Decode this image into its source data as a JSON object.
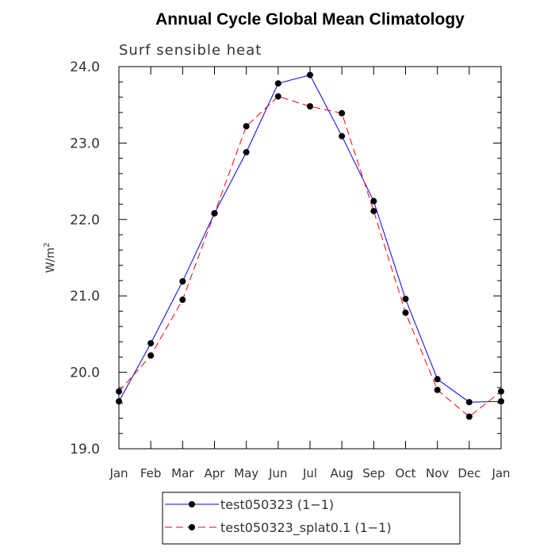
{
  "chart_data": {
    "type": "line",
    "title": "Annual Cycle Global Mean Climatology",
    "subtitle": "Surf sensible heat",
    "ylabel": "W/m",
    "ylabel_superscript": "2",
    "ylim": [
      19.0,
      24.0
    ],
    "yticks": [
      19.0,
      20.0,
      21.0,
      22.0,
      23.0,
      24.0
    ],
    "ytick_labels": [
      "19.0",
      "20.0",
      "21.0",
      "22.0",
      "23.0",
      "24.0"
    ],
    "categories": [
      "Jan",
      "Feb",
      "Mar",
      "Apr",
      "May",
      "Jun",
      "Jul",
      "Aug",
      "Sep",
      "Oct",
      "Nov",
      "Dec",
      "Jan"
    ],
    "grid": false,
    "legend_position": "bottom",
    "series": [
      {
        "name": "test050323 (1−1)",
        "color": "#0000ff",
        "dash": "solid",
        "values": [
          19.62,
          20.38,
          21.19,
          22.08,
          22.88,
          23.78,
          23.89,
          23.09,
          22.24,
          20.96,
          19.91,
          19.61,
          19.62
        ]
      },
      {
        "name": "test050323_splat0.1 (1−1)",
        "color": "#ff0000",
        "dash": "dashed",
        "values": [
          19.75,
          20.22,
          20.95,
          22.08,
          23.22,
          23.61,
          23.48,
          23.39,
          22.11,
          20.78,
          19.77,
          19.42,
          19.75
        ]
      }
    ]
  }
}
